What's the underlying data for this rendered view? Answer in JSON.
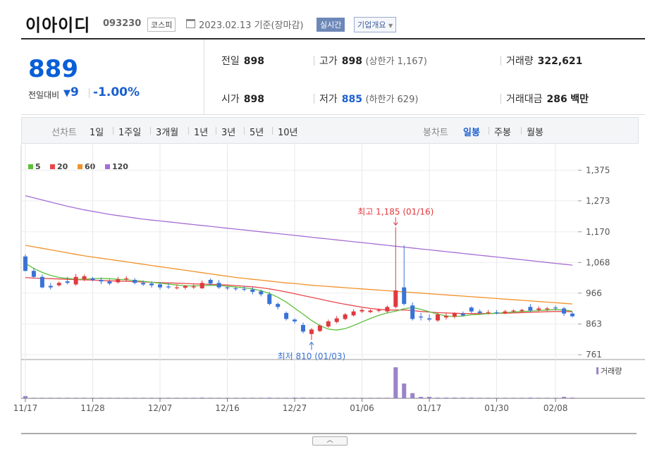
{
  "header": {
    "company_name": "이아이디",
    "code": "093230",
    "market_badge": "코스피",
    "date_text": "2023.02.13 기준(장마감)",
    "realtime_label": "실시간",
    "overview_label": "기업개요",
    "calendar_icon": "calendar-icon",
    "dropdown_icon": "chevron-down-icon"
  },
  "price": {
    "current": "889",
    "vs_label": "전일대비",
    "change": "9",
    "change_direction_icon": "down-triangle-icon",
    "change_pct": "-1.00%"
  },
  "stats": {
    "prev_close_label": "전일",
    "prev_close": "898",
    "high_label": "고가",
    "high": "898",
    "upper_limit": "(상한가 1,167)",
    "volume_label": "거래량",
    "volume": "322,621",
    "open_label": "시가",
    "open": "898",
    "low_label": "저가",
    "low": "885",
    "lower_limit": "(하한가 629)",
    "amount_label": "거래대금",
    "amount": "286",
    "amount_unit": "백만"
  },
  "periods": {
    "line_chart_label": "선차트",
    "items": [
      "1일",
      "1주일",
      "3개월",
      "1년",
      "3년",
      "5년",
      "10년"
    ],
    "candle_chart_label": "봉차트",
    "candle_items": [
      "일봉",
      "주봉",
      "월봉"
    ],
    "active_candle": "일봉"
  },
  "colors": {
    "up": "#e0393e",
    "down": "#3a73d6",
    "ma5": "#5cbf3a",
    "ma20": "#e8474c",
    "ma60": "#f1912a",
    "ma120": "#a56ed4",
    "volume": "#9b83c8"
  },
  "chart_data": {
    "type": "candlestick",
    "legend": [
      {
        "name": "5",
        "color": "#5cbf3a"
      },
      {
        "name": "20",
        "color": "#e8474c"
      },
      {
        "name": "60",
        "color": "#f1912a"
      },
      {
        "name": "120",
        "color": "#a56ed4"
      }
    ],
    "y_ticks": [
      "1,375",
      "1,273",
      "1,170",
      "1,068",
      "966",
      "863",
      "761"
    ],
    "y_tick_values": [
      1375,
      1273,
      1170,
      1068,
      966,
      863,
      761
    ],
    "ylim": [
      745,
      1390
    ],
    "x_ticks": [
      "11/17",
      "11/28",
      "12/07",
      "12/16",
      "12/27",
      "01/06",
      "01/17",
      "01/30",
      "02/08"
    ],
    "volume_label": "거래량",
    "annotation_high": "최고 1,185 (01/16)",
    "annotation_low": "최저 810 (01/03)",
    "candles": [
      {
        "o": 1088,
        "h": 1095,
        "c": 1040,
        "l": 1038
      },
      {
        "o": 1040,
        "h": 1050,
        "c": 1020,
        "l": 1015
      },
      {
        "o": 1020,
        "h": 1028,
        "c": 985,
        "l": 982
      },
      {
        "o": 990,
        "h": 1000,
        "c": 985,
        "l": 978
      },
      {
        "o": 992,
        "h": 1005,
        "c": 1000,
        "l": 988
      },
      {
        "o": 1005,
        "h": 1020,
        "c": 1000,
        "l": 995
      },
      {
        "o": 995,
        "h": 1030,
        "c": 1020,
        "l": 990
      },
      {
        "o": 1012,
        "h": 1028,
        "c": 1022,
        "l": 1006
      },
      {
        "o": 1015,
        "h": 1020,
        "c": 1010,
        "l": 1005
      },
      {
        "o": 1010,
        "h": 1018,
        "c": 1005,
        "l": 996
      },
      {
        "o": 1005,
        "h": 1012,
        "c": 998,
        "l": 992
      },
      {
        "o": 1002,
        "h": 1020,
        "c": 1012,
        "l": 998
      },
      {
        "o": 1012,
        "h": 1022,
        "c": 1015,
        "l": 1006
      },
      {
        "o": 1010,
        "h": 1016,
        "c": 1000,
        "l": 995
      },
      {
        "o": 1000,
        "h": 1008,
        "c": 995,
        "l": 990
      },
      {
        "o": 998,
        "h": 1005,
        "c": 992,
        "l": 984
      },
      {
        "o": 995,
        "h": 1003,
        "c": 985,
        "l": 978
      },
      {
        "o": 988,
        "h": 1000,
        "c": 985,
        "l": 980
      },
      {
        "o": 985,
        "h": 995,
        "c": 985,
        "l": 978
      },
      {
        "o": 984,
        "h": 993,
        "c": 990,
        "l": 978
      },
      {
        "o": 985,
        "h": 995,
        "c": 988,
        "l": 980
      },
      {
        "o": 982,
        "h": 1008,
        "c": 1000,
        "l": 980
      },
      {
        "o": 1010,
        "h": 1015,
        "c": 998,
        "l": 992
      },
      {
        "o": 1000,
        "h": 1010,
        "c": 985,
        "l": 980
      },
      {
        "o": 985,
        "h": 990,
        "c": 982,
        "l": 976
      },
      {
        "o": 982,
        "h": 988,
        "c": 980,
        "l": 974
      },
      {
        "o": 980,
        "h": 990,
        "c": 978,
        "l": 972
      },
      {
        "o": 978,
        "h": 986,
        "c": 970,
        "l": 962
      },
      {
        "o": 972,
        "h": 978,
        "c": 962,
        "l": 955
      },
      {
        "o": 962,
        "h": 970,
        "c": 930,
        "l": 925
      },
      {
        "o": 930,
        "h": 935,
        "c": 920,
        "l": 912
      },
      {
        "o": 900,
        "h": 905,
        "c": 880,
        "l": 875
      },
      {
        "o": 878,
        "h": 882,
        "c": 872,
        "l": 865
      },
      {
        "o": 860,
        "h": 868,
        "c": 838,
        "l": 832
      },
      {
        "o": 830,
        "h": 850,
        "c": 845,
        "l": 810
      },
      {
        "o": 840,
        "h": 862,
        "c": 858,
        "l": 836
      },
      {
        "o": 855,
        "h": 878,
        "c": 872,
        "l": 850
      },
      {
        "o": 870,
        "h": 890,
        "c": 882,
        "l": 865
      },
      {
        "o": 880,
        "h": 900,
        "c": 895,
        "l": 876
      },
      {
        "o": 892,
        "h": 912,
        "c": 905,
        "l": 888
      },
      {
        "o": 905,
        "h": 915,
        "c": 910,
        "l": 900
      },
      {
        "o": 903,
        "h": 912,
        "c": 908,
        "l": 900
      },
      {
        "o": 908,
        "h": 915,
        "c": 910,
        "l": 902
      },
      {
        "o": 905,
        "h": 925,
        "c": 920,
        "l": 900
      },
      {
        "o": 920,
        "h": 1185,
        "c": 975,
        "l": 915
      },
      {
        "o": 985,
        "h": 1125,
        "c": 930,
        "l": 925
      },
      {
        "o": 925,
        "h": 935,
        "c": 880,
        "l": 875
      },
      {
        "o": 888,
        "h": 900,
        "c": 885,
        "l": 875
      },
      {
        "o": 882,
        "h": 895,
        "c": 878,
        "l": 872
      },
      {
        "o": 875,
        "h": 902,
        "c": 895,
        "l": 870
      },
      {
        "o": 885,
        "h": 900,
        "c": 890,
        "l": 878
      },
      {
        "o": 888,
        "h": 902,
        "c": 900,
        "l": 882
      },
      {
        "o": 898,
        "h": 905,
        "c": 892,
        "l": 888
      },
      {
        "o": 918,
        "h": 922,
        "c": 905,
        "l": 900
      },
      {
        "o": 905,
        "h": 912,
        "c": 900,
        "l": 895
      },
      {
        "o": 902,
        "h": 910,
        "c": 902,
        "l": 895
      },
      {
        "o": 902,
        "h": 910,
        "c": 900,
        "l": 895
      },
      {
        "o": 900,
        "h": 910,
        "c": 905,
        "l": 896
      },
      {
        "o": 905,
        "h": 912,
        "c": 908,
        "l": 900
      },
      {
        "o": 906,
        "h": 914,
        "c": 910,
        "l": 900
      },
      {
        "o": 920,
        "h": 930,
        "c": 908,
        "l": 903
      },
      {
        "o": 910,
        "h": 922,
        "c": 915,
        "l": 905
      },
      {
        "o": 912,
        "h": 920,
        "c": 915,
        "l": 906
      },
      {
        "o": 918,
        "h": 925,
        "c": 915,
        "l": 908
      },
      {
        "o": 915,
        "h": 920,
        "c": 898,
        "l": 890
      },
      {
        "o": 898,
        "h": 902,
        "c": 889,
        "l": 885
      }
    ],
    "volumes": [
      3,
      0,
      0,
      0,
      0,
      0,
      0,
      0,
      0,
      0,
      0,
      0,
      0,
      0,
      0,
      0,
      0,
      0,
      0,
      0,
      0,
      1,
      0,
      0,
      0,
      0,
      0,
      0,
      0,
      1,
      0,
      0,
      1,
      1,
      0,
      0,
      0,
      0,
      0,
      0,
      0,
      0,
      0,
      0,
      42,
      20,
      7,
      2,
      2,
      1,
      1,
      1,
      1,
      1,
      0,
      0,
      0,
      0,
      0,
      0,
      1,
      0,
      0,
      0,
      2,
      1
    ],
    "ma5": [
      1065,
      1048,
      1035,
      1025,
      1018,
      1015,
      1012,
      1012,
      1014,
      1015,
      1014,
      1012,
      1010,
      1008,
      1005,
      1002,
      999,
      996,
      993,
      990,
      990,
      991,
      992,
      991,
      989,
      986,
      984,
      980,
      974,
      965,
      952,
      936,
      916,
      896,
      875,
      858,
      846,
      843,
      848,
      858,
      870,
      882,
      892,
      900,
      906,
      914,
      918,
      912,
      904,
      896,
      890,
      888,
      890,
      894,
      895,
      898,
      899,
      901,
      903,
      905,
      906,
      908,
      910,
      911,
      910,
      906
    ],
    "ma20": [
      1018,
      1016,
      1015,
      1014,
      1013,
      1012,
      1011,
      1010,
      1009,
      1008,
      1007,
      1006,
      1005,
      1004,
      1003,
      1002,
      1001,
      1000,
      999,
      998,
      997,
      996,
      995,
      994,
      993,
      991,
      989,
      987,
      984,
      980,
      975,
      970,
      964,
      958,
      952,
      946,
      940,
      934,
      929,
      924,
      919,
      915,
      912,
      910,
      910,
      910,
      908,
      905,
      903,
      901,
      900,
      899,
      898,
      898,
      898,
      898,
      899,
      899,
      900,
      901,
      902,
      903,
      904,
      905,
      905,
      904
    ],
    "ma60": [
      1125,
      1120,
      1115,
      1110,
      1105,
      1100,
      1095,
      1090,
      1086,
      1082,
      1078,
      1074,
      1070,
      1066,
      1062,
      1058,
      1054,
      1050,
      1046,
      1042,
      1038,
      1034,
      1030,
      1026,
      1022,
      1018,
      1015,
      1012,
      1009,
      1006,
      1003,
      1000,
      998,
      995,
      992,
      990,
      988,
      986,
      984,
      982,
      980,
      978,
      976,
      974,
      972,
      970,
      968,
      966,
      964,
      962,
      960,
      958,
      956,
      954,
      952,
      950,
      948,
      946,
      944,
      942,
      940,
      938,
      936,
      934,
      932,
      930
    ],
    "ma120": [
      1290,
      1283,
      1276,
      1269,
      1262,
      1255,
      1249,
      1243,
      1238,
      1233,
      1228,
      1224,
      1220,
      1216,
      1212,
      1209,
      1206,
      1203,
      1200,
      1197,
      1194,
      1191,
      1188,
      1185,
      1182,
      1179,
      1176,
      1173,
      1170,
      1167,
      1164,
      1161,
      1158,
      1155,
      1152,
      1149,
      1146,
      1143,
      1140,
      1137,
      1134,
      1131,
      1128,
      1125,
      1122,
      1119,
      1116,
      1113,
      1110,
      1107,
      1104,
      1101,
      1098,
      1095,
      1092,
      1089,
      1086,
      1083,
      1080,
      1077,
      1074,
      1071,
      1068,
      1065,
      1062,
      1059
    ]
  }
}
